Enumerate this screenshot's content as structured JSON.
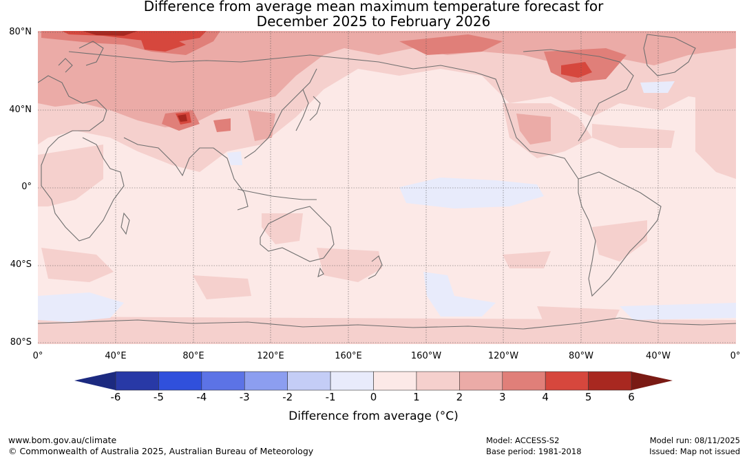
{
  "title": {
    "line1": "Difference from average mean maximum temperature forecast for",
    "line2": "December 2025 to February 2026"
  },
  "map": {
    "lat_labels": [
      "80°N",
      "40°N",
      "0°",
      "40°S",
      "80°S"
    ],
    "lon_labels": [
      "0°",
      "40°E",
      "80°E",
      "120°E",
      "160°E",
      "160°W",
      "120°W",
      "80°W",
      "40°W",
      "0°"
    ]
  },
  "colorbar": {
    "title": "Difference from average (°C)",
    "ticks": [
      "-6",
      "-5",
      "-4",
      "-3",
      "-2",
      "-1",
      "0",
      "1",
      "2",
      "3",
      "4",
      "5",
      "6"
    ],
    "colors": [
      "#2839a6",
      "#3050dc",
      "#5c73e6",
      "#8c9ef0",
      "#c4cdf6",
      "#e8ebfb",
      "#fce9e7",
      "#f5d0cd",
      "#ebaba7",
      "#e07f79",
      "#d6473d",
      "#a82820"
    ],
    "under_color": "#1c2a80",
    "over_color": "#7a1a14"
  },
  "footer": {
    "url": "www.bom.gov.au/climate",
    "copyright": "© Commonwealth of Australia 2025, Australian Bureau of Meteorology",
    "model": "Model: ACCESS-S2",
    "base_period": "Base period: 1981-2018",
    "model_run": "Model run: 08/11/2025",
    "issued": "Issued: Map not issued"
  }
}
